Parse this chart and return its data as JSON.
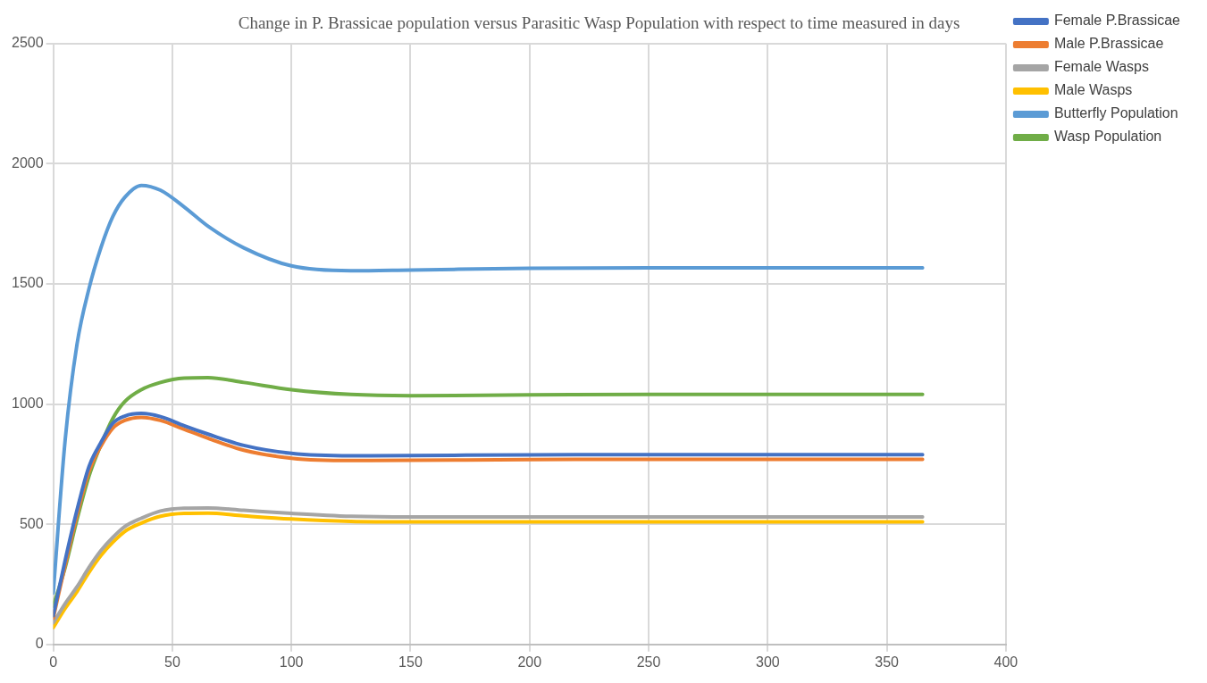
{
  "chart_data": {
    "type": "line",
    "title": "Change in P. Brassicae population versus Parasitic Wasp Population with respect to time measured in days",
    "x": [
      0,
      5,
      10,
      15,
      20,
      25,
      30,
      37,
      45,
      55,
      65,
      80,
      100,
      125,
      150,
      200,
      250,
      300,
      365
    ],
    "series": [
      {
        "name": "Female P.Brassicae",
        "color": "#4472c4",
        "values": [
          120,
          350,
          560,
          740,
          840,
          920,
          950,
          961,
          948,
          910,
          875,
          828,
          795,
          785,
          786,
          789,
          790,
          790,
          790
        ]
      },
      {
        "name": "Male P.Brassicae",
        "color": "#ed7d31",
        "values": [
          110,
          330,
          540,
          720,
          825,
          900,
          932,
          945,
          932,
          895,
          858,
          808,
          775,
          765,
          766,
          769,
          770,
          770,
          770
        ]
      },
      {
        "name": "Female Wasps",
        "color": "#a5a5a5",
        "values": [
          90,
          170,
          240,
          320,
          390,
          445,
          490,
          525,
          555,
          567,
          568,
          558,
          545,
          533,
          530,
          530,
          530,
          530,
          530
        ]
      },
      {
        "name": "Male Wasps",
        "color": "#ffc000",
        "values": [
          70,
          150,
          220,
          300,
          370,
          425,
          470,
          505,
          533,
          545,
          546,
          535,
          522,
          512,
          510,
          510,
          510,
          510,
          510
        ]
      },
      {
        "name": "Butterfly Population",
        "color": "#5b9bd5",
        "values": [
          214,
          850,
          1250,
          1480,
          1650,
          1780,
          1860,
          1910,
          1890,
          1820,
          1740,
          1650,
          1575,
          1555,
          1558,
          1565,
          1567,
          1567,
          1567
        ]
      },
      {
        "name": "Wasp Population",
        "color": "#70ad47",
        "values": [
          160,
          320,
          520,
          700,
          830,
          940,
          1010,
          1060,
          1090,
          1108,
          1110,
          1090,
          1060,
          1040,
          1035,
          1038,
          1040,
          1040,
          1040
        ]
      }
    ],
    "xlim": [
      0,
      400
    ],
    "xticks": [
      0,
      50,
      100,
      150,
      200,
      250,
      300,
      350,
      400
    ],
    "ylim": [
      0,
      2500
    ],
    "yticks": [
      0,
      500,
      1000,
      1500,
      2000,
      2500
    ],
    "grid": true,
    "legend": "top right",
    "marker": "none",
    "line_style": "solid"
  }
}
